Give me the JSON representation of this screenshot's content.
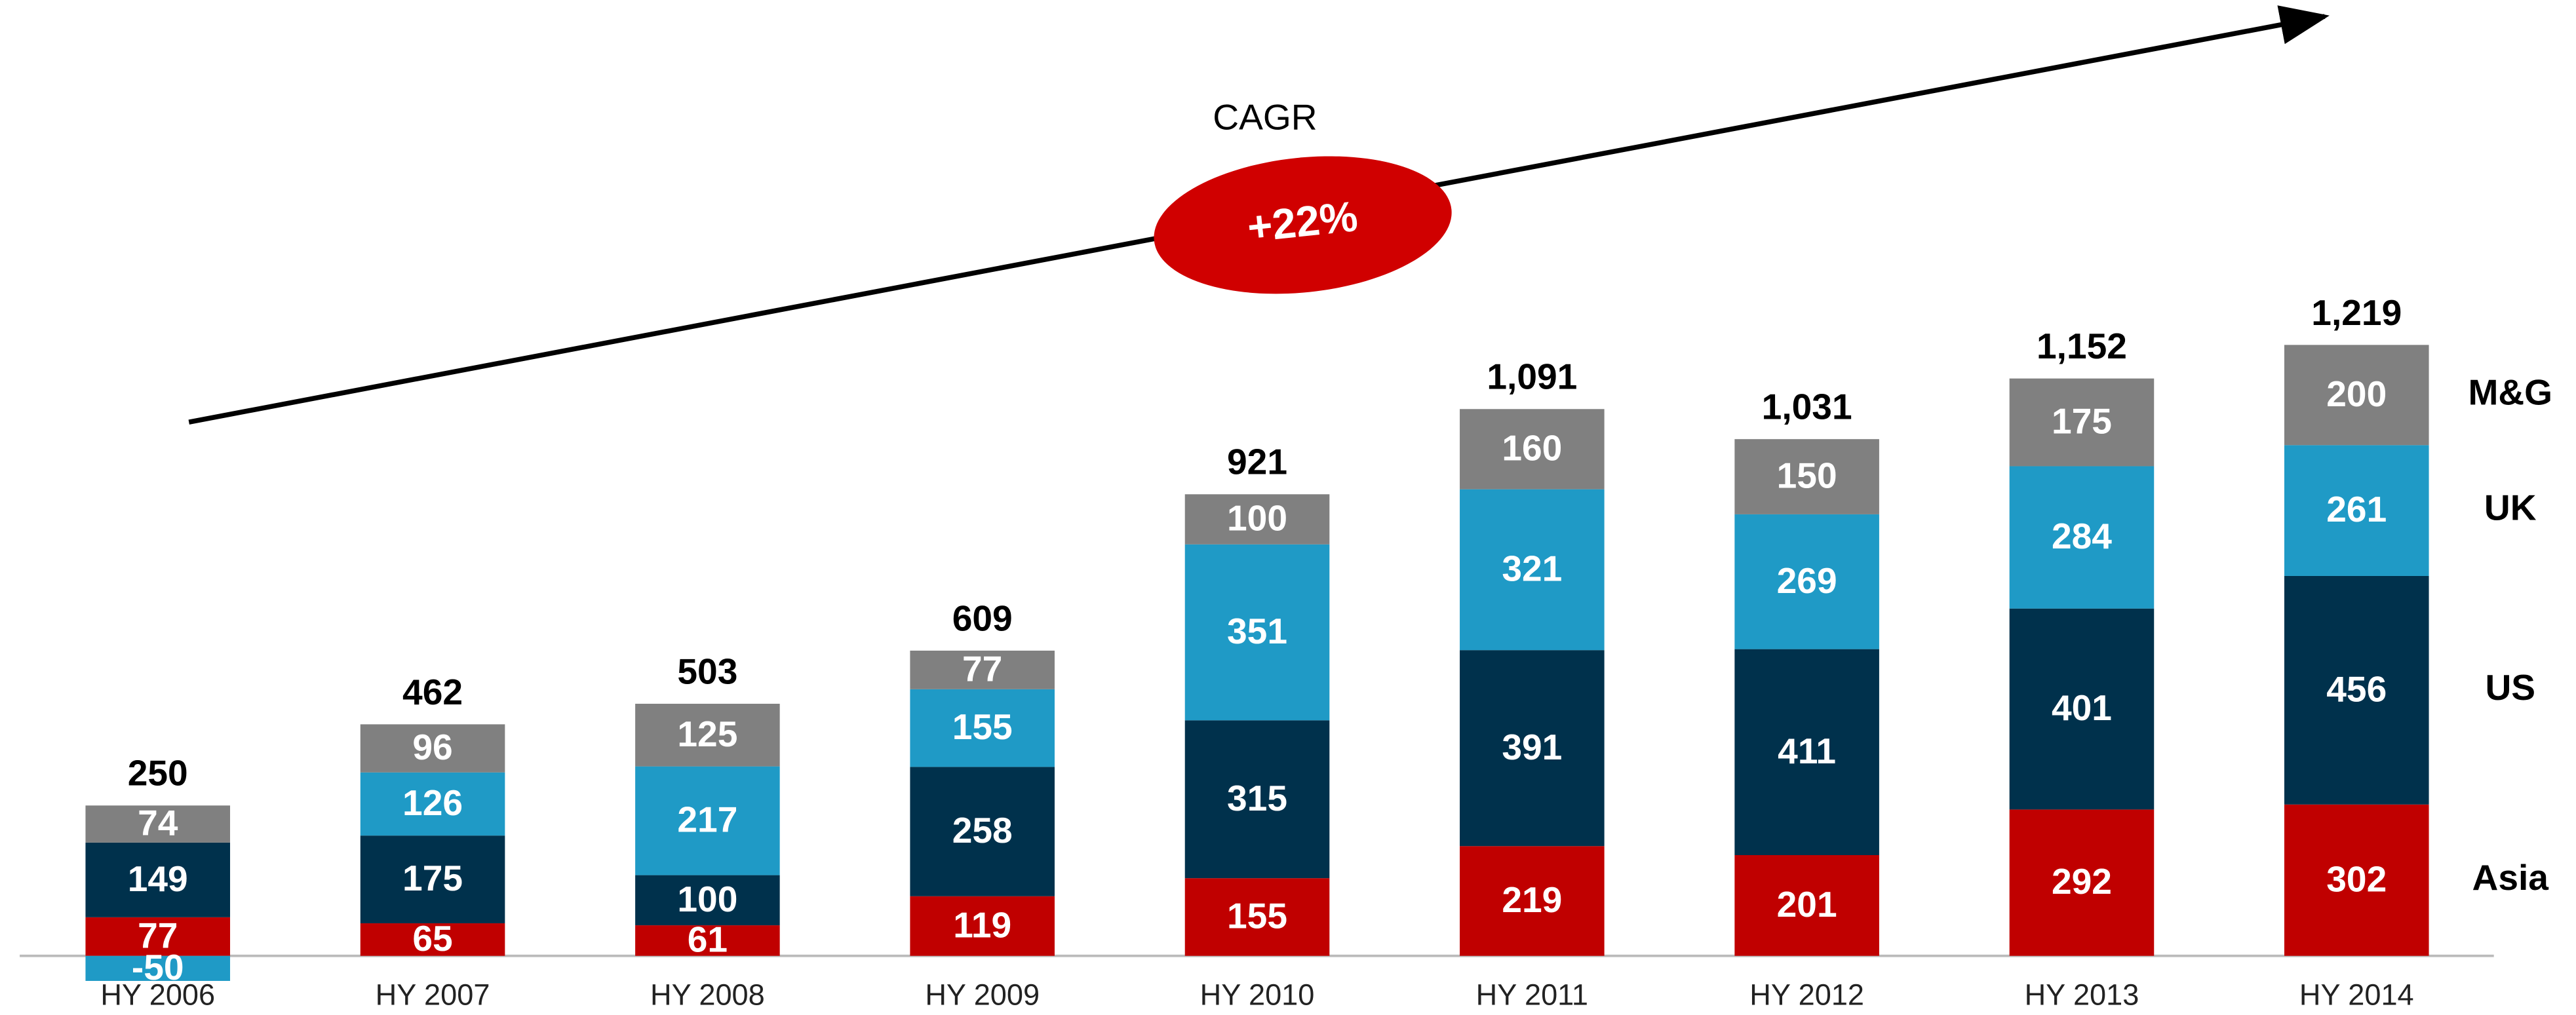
{
  "chart_data": {
    "type": "stacked_bar",
    "categories": [
      "HY 2006",
      "HY 2007",
      "HY 2008",
      "HY 2009",
      "HY 2010",
      "HY 2011",
      "HY 2012",
      "HY 2013",
      "HY 2014"
    ],
    "series": [
      {
        "name": "Asia",
        "color": "#c00000",
        "values": [
          77,
          65,
          61,
          119,
          155,
          219,
          201,
          292,
          302
        ]
      },
      {
        "name": "US",
        "color": "#00314c",
        "values": [
          149,
          175,
          100,
          258,
          315,
          391,
          411,
          401,
          456
        ]
      },
      {
        "name": "UK",
        "color": "#1f9ac6",
        "values": [
          -50,
          126,
          217,
          155,
          351,
          321,
          269,
          284,
          261
        ]
      },
      {
        "name": "M&G",
        "color": "#808080",
        "values": [
          74,
          96,
          125,
          77,
          100,
          160,
          150,
          175,
          200
        ]
      }
    ],
    "totals": [
      250,
      462,
      503,
      609,
      921,
      1091,
      1031,
      1152,
      1219
    ],
    "total_labels": [
      "250",
      "462",
      "503",
      "609",
      "921",
      "1,091",
      "1,031",
      "1,152",
      "1,219"
    ],
    "cagr_label": "CAGR",
    "cagr_value": "+22%"
  }
}
